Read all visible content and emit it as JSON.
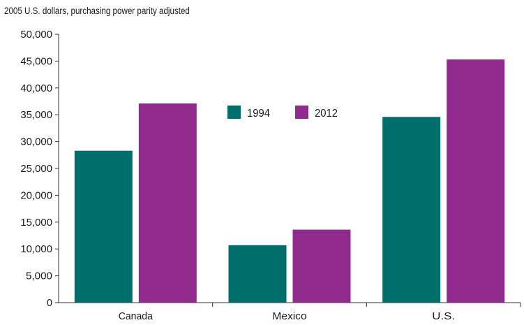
{
  "chart_data": {
    "type": "bar",
    "title": "",
    "subtitle": "2005 U.S. dollars, purchasing power parity adjusted",
    "xlabel": "",
    "ylabel": "",
    "categories": [
      "Canada",
      "Mexico",
      "U.S."
    ],
    "series": [
      {
        "name": "1994",
        "color": "#006f6c",
        "values": [
          28300,
          10700,
          34600
        ]
      },
      {
        "name": "2012",
        "color": "#912a8d",
        "values": [
          37100,
          13600,
          45300
        ]
      }
    ],
    "ylim": [
      0,
      50000
    ],
    "yticks": [
      0,
      5000,
      10000,
      15000,
      20000,
      25000,
      30000,
      35000,
      40000,
      45000,
      50000
    ],
    "ytick_labels": [
      "0",
      "5,000",
      "10,000",
      "15,000",
      "20,000",
      "25,000",
      "30,000",
      "35,000",
      "40,000",
      "45,000",
      "50,000"
    ],
    "grid": false,
    "legend_position": "top-center"
  }
}
